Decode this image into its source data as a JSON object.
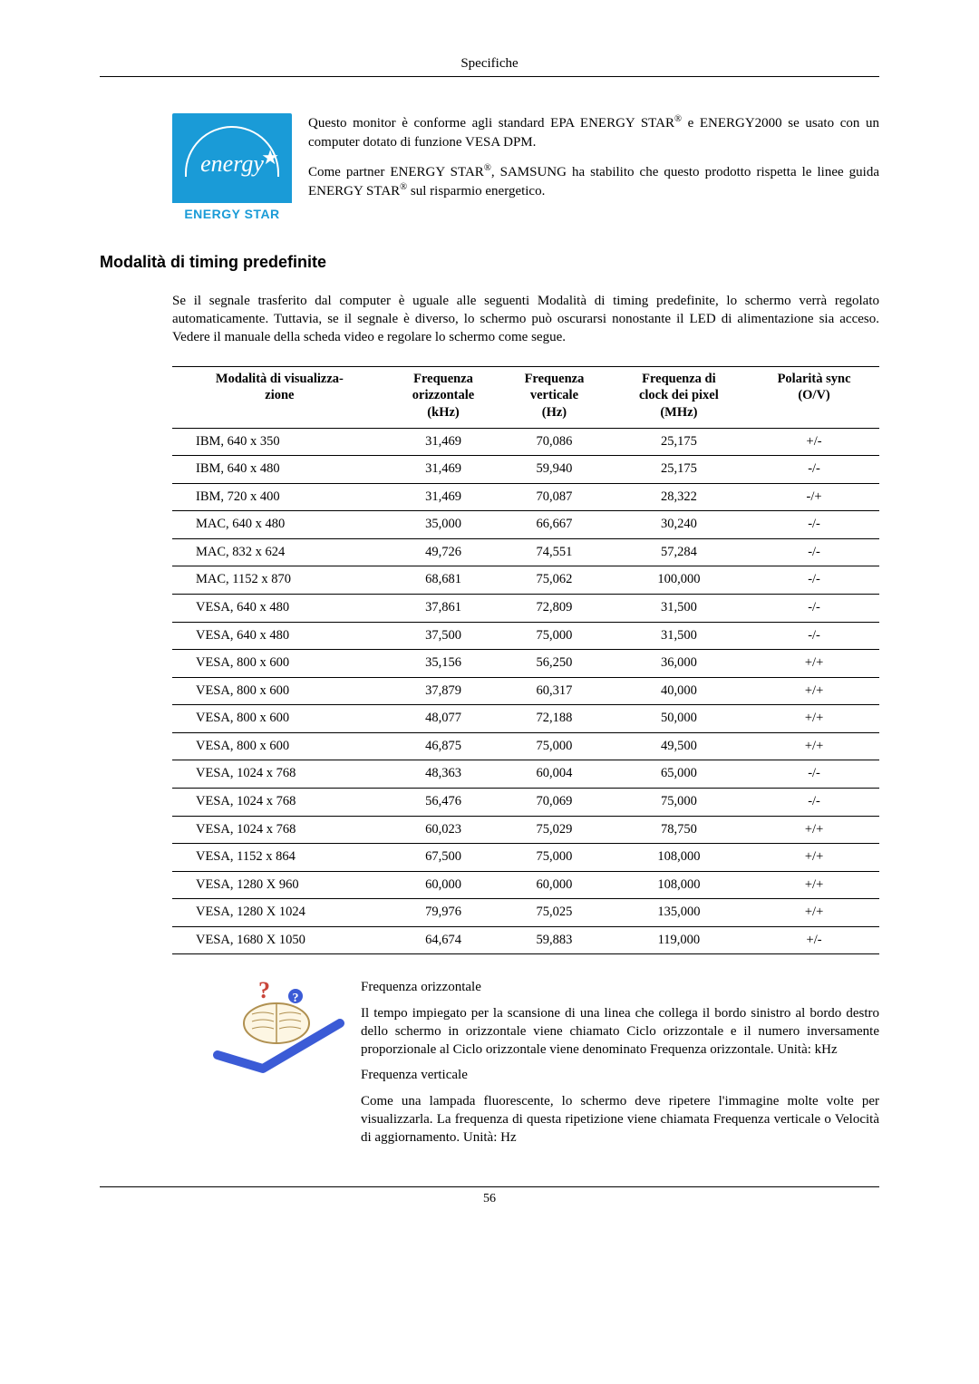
{
  "header": {
    "title": "Specifiche"
  },
  "energy": {
    "logo": {
      "script": "energy",
      "bar": "ENERGY STAR"
    },
    "para1_a": "Questo monitor è conforme agli standard EPA ENERGY STAR",
    "para1_b": " e ENERGY2000 se usato con un computer dotato di funzione VESA DPM.",
    "para2_a": "Come partner ENERGY STAR",
    "para2_b": ", SAMSUNG ha stabilito che questo prodotto rispetta le linee guida ENERGY STAR",
    "para2_c": " sul risparmio energetico."
  },
  "section_title": "Modalità di timing predefinite",
  "intro": "Se il segnale trasferito dal computer è uguale alle seguenti Modalità di timing predefinite, lo schermo verrà regolato automaticamente. Tuttavia, se il segnale è diverso, lo schermo può oscurarsi nonostante il LED di alimentazione sia acceso. Vedere il manuale della scheda video e regolare lo schermo come segue.",
  "table": {
    "columns": [
      "Modalità di visualizza-\nzione",
      "Frequenza\norizzontale\n(kHz)",
      "Frequenza\nverticale\n(Hz)",
      "Frequenza di\nclock dei pixel\n(MHz)",
      "Polarità sync\n(O/V)"
    ],
    "rows": [
      [
        "IBM, 640 x 350",
        "31,469",
        "70,086",
        "25,175",
        "+/-"
      ],
      [
        "IBM, 640 x 480",
        "31,469",
        "59,940",
        "25,175",
        "-/-"
      ],
      [
        "IBM, 720 x 400",
        "31,469",
        "70,087",
        "28,322",
        "-/+"
      ],
      [
        "MAC, 640 x 480",
        "35,000",
        "66,667",
        "30,240",
        "-/-"
      ],
      [
        "MAC, 832 x 624",
        "49,726",
        "74,551",
        "57,284",
        "-/-"
      ],
      [
        "MAC, 1152 x 870",
        "68,681",
        "75,062",
        "100,000",
        "-/-"
      ],
      [
        "VESA, 640 x 480",
        "37,861",
        "72,809",
        "31,500",
        "-/-"
      ],
      [
        "VESA, 640 x 480",
        "37,500",
        "75,000",
        "31,500",
        "-/-"
      ],
      [
        "VESA, 800 x 600",
        "35,156",
        "56,250",
        "36,000",
        "+/+"
      ],
      [
        "VESA, 800 x 600",
        "37,879",
        "60,317",
        "40,000",
        "+/+"
      ],
      [
        "VESA, 800 x 600",
        "48,077",
        "72,188",
        "50,000",
        "+/+"
      ],
      [
        "VESA, 800 x 600",
        "46,875",
        "75,000",
        "49,500",
        "+/+"
      ],
      [
        "VESA, 1024 x 768",
        "48,363",
        "60,004",
        "65,000",
        "-/-"
      ],
      [
        "VESA, 1024 x 768",
        "56,476",
        "70,069",
        "75,000",
        "-/-"
      ],
      [
        "VESA, 1024 x 768",
        "60,023",
        "75,029",
        "78,750",
        "+/+"
      ],
      [
        "VESA, 1152 x 864",
        "67,500",
        "75,000",
        "108,000",
        "+/+"
      ],
      [
        "VESA, 1280 X 960",
        "60,000",
        "60,000",
        "108,000",
        "+/+"
      ],
      [
        "VESA, 1280 X 1024",
        "79,976",
        "75,025",
        "135,000",
        "+/+"
      ],
      [
        "VESA, 1680 X 1050",
        "64,674",
        "59,883",
        "119,000",
        "+/-"
      ]
    ]
  },
  "notes": {
    "h1": "Frequenza orizzontale",
    "p1": "Il tempo impiegato per la scansione di una linea che collega il bordo sinistro al bordo destro dello schermo in orizzontale viene chiamato Ciclo orizzontale e il numero inversamente proporzionale al Ciclo orizzontale viene denominato Frequenza orizzontale. Unità: kHz",
    "h2": "Frequenza verticale",
    "p2": "Come una lampada fluorescente, lo schermo deve ripetere l'immagine molte volte per visualizzarla. La frequenza di questa ripetizione viene chiamata Frequenza verticale o Velocità di aggiornamento. Unità: Hz"
  },
  "footer": {
    "page": "56"
  }
}
